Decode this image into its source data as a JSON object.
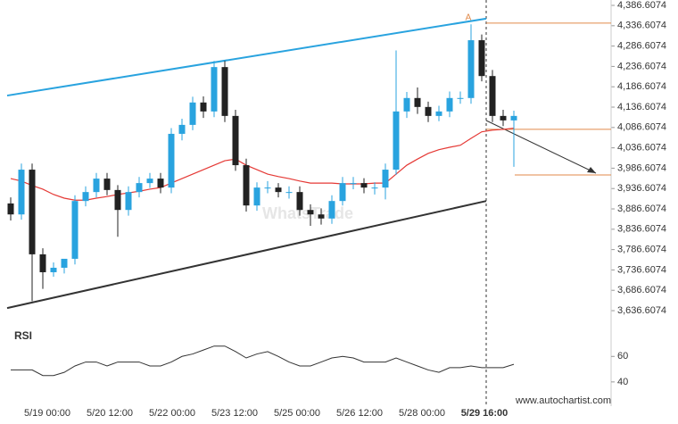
{
  "chart_data": {
    "type": "candlestick",
    "ylim": [
      3588.4,
      4399.8
    ],
    "yticks": [
      {
        "value": 4386.6074,
        "label": "4,386.6074"
      },
      {
        "value": 4336.6074,
        "label": "4,336.6074"
      },
      {
        "value": 4286.6074,
        "label": "4,286.6074"
      },
      {
        "value": 4236.6074,
        "label": "4,236.6074"
      },
      {
        "value": 4186.6074,
        "label": "4,186.6074"
      },
      {
        "value": 4136.6074,
        "label": "4,136.6074"
      },
      {
        "value": 4086.6074,
        "label": "4,086.6074"
      },
      {
        "value": 4036.6074,
        "label": "4,036.6074"
      },
      {
        "value": 3986.6074,
        "label": "3,986.6074"
      },
      {
        "value": 3936.6074,
        "label": "3,936.6074"
      },
      {
        "value": 3886.6074,
        "label": "3,886.6074"
      },
      {
        "value": 3836.6074,
        "label": "3,836.6074"
      },
      {
        "value": 3786.6074,
        "label": "3,786.6074"
      },
      {
        "value": 3736.6074,
        "label": "3,736.6074"
      },
      {
        "value": 3686.6074,
        "label": "3,686.6074"
      },
      {
        "value": 3636.6074,
        "label": "3,636.6074"
      }
    ],
    "xtick_labels": [
      "5/19 00:00",
      "5/20 12:00",
      "5/22 00:00",
      "5/23 12:00",
      "5/25 00:00",
      "5/26 12:00",
      "5/28 00:00",
      "5/29 16:00"
    ],
    "up_color": "#29a3df",
    "down_color": "#222222",
    "open": [
      3900,
      3873,
      3983,
      3775,
      3731,
      3742,
      3764,
      3906,
      3928,
      3961,
      3933,
      3884,
      3928,
      3950,
      3961,
      3939,
      4071,
      4093,
      4148,
      4126,
      4235,
      4115,
      3994,
      3895,
      3939,
      3939,
      3928,
      3928,
      3884,
      3873,
      3863,
      3906,
      3950,
      3950,
      3939,
      3939,
      3983,
      4126,
      4159,
      4137,
      4115,
      4126,
      4159,
      4159,
      4301,
      4213,
      4115,
      4104
    ],
    "high": [
      3915,
      3998,
      3998,
      3790,
      3755,
      3760,
      3920,
      3942,
      3975,
      3975,
      3945,
      3942,
      3965,
      3975,
      3975,
      4085,
      4108,
      4162,
      4163,
      4250,
      4250,
      4130,
      4010,
      3952,
      3955,
      3950,
      3942,
      3942,
      3898,
      3888,
      3920,
      3965,
      3965,
      3962,
      3952,
      3998,
      4276,
      4174,
      4185,
      4150,
      4140,
      4175,
      4175,
      4340,
      4315,
      4228,
      4130,
      4128
    ],
    "low": [
      3858,
      3860,
      3660,
      3690,
      3720,
      3728,
      3750,
      3893,
      3915,
      3920,
      3818,
      3870,
      3915,
      3938,
      3925,
      3925,
      4055,
      4080,
      4110,
      4112,
      4100,
      3980,
      3880,
      3882,
      3925,
      3915,
      3912,
      3870,
      3845,
      3848,
      3850,
      3895,
      3935,
      3925,
      3922,
      3910,
      3970,
      4110,
      4120,
      4100,
      4102,
      4112,
      4145,
      4145,
      4200,
      4100,
      4090,
      3990
    ],
    "close": [
      3873,
      3983,
      3775,
      3731,
      3742,
      3764,
      3906,
      3928,
      3961,
      3933,
      3884,
      3928,
      3950,
      3961,
      3939,
      4071,
      4093,
      4148,
      4126,
      4235,
      4115,
      3994,
      3895,
      3939,
      3939,
      3928,
      3928,
      3884,
      3873,
      3863,
      3906,
      3950,
      3950,
      3939,
      3939,
      3983,
      4126,
      4159,
      4137,
      4115,
      4126,
      4159,
      4159,
      4301,
      4213,
      4115,
      4104,
      4115
    ],
    "moving_average": {
      "color": "#e53935",
      "values": [
        3961,
        3955,
        3944,
        3935,
        3922,
        3913,
        3908,
        3908,
        3913,
        3917,
        3922,
        3926,
        3930,
        3935,
        3939,
        3950,
        3961,
        3972,
        3983,
        3994,
        4005,
        4009,
        3994,
        3983,
        3972,
        3966,
        3961,
        3955,
        3950,
        3950,
        3950,
        3948,
        3948,
        3948,
        3950,
        3950,
        3972,
        3994,
        4009,
        4023,
        4032,
        4038,
        4043,
        4060,
        4076,
        4080,
        4082,
        4085
      ]
    },
    "channel_upper": {
      "color": "#29a3df",
      "start": 4165,
      "end": 4354
    },
    "channel_lower": {
      "color": "#333333",
      "start": 3643,
      "end": 3906
    },
    "levels": [
      {
        "value": 4343,
        "color": "#e08a4a"
      },
      {
        "value": 4082,
        "color": "#e08a4a"
      },
      {
        "value": 3970,
        "color": "#e08a4a"
      }
    ],
    "pattern_label": "A",
    "rsi": {
      "title": "RSI",
      "ylim": [
        28,
        70
      ],
      "yticks": [
        60,
        40
      ],
      "color": "#333333",
      "values": [
        49.4,
        49.4,
        49.4,
        45,
        45,
        47.5,
        52.5,
        55.6,
        55.6,
        52.5,
        55.6,
        55.6,
        55.6,
        52.5,
        52.5,
        55.6,
        60,
        61.9,
        65,
        68.1,
        68.1,
        63.8,
        58.8,
        61.9,
        63.8,
        60,
        55.6,
        52.5,
        52.5,
        55.6,
        58.8,
        60,
        58.8,
        55.6,
        55.6,
        55.6,
        58.8,
        55.6,
        52.5,
        49.4,
        47.5,
        51.2,
        51.2,
        52.5,
        51.2,
        51.2,
        51.2,
        53.8
      ]
    },
    "watermark": "WhatsTrade",
    "footer": "www.autochartist.com"
  }
}
